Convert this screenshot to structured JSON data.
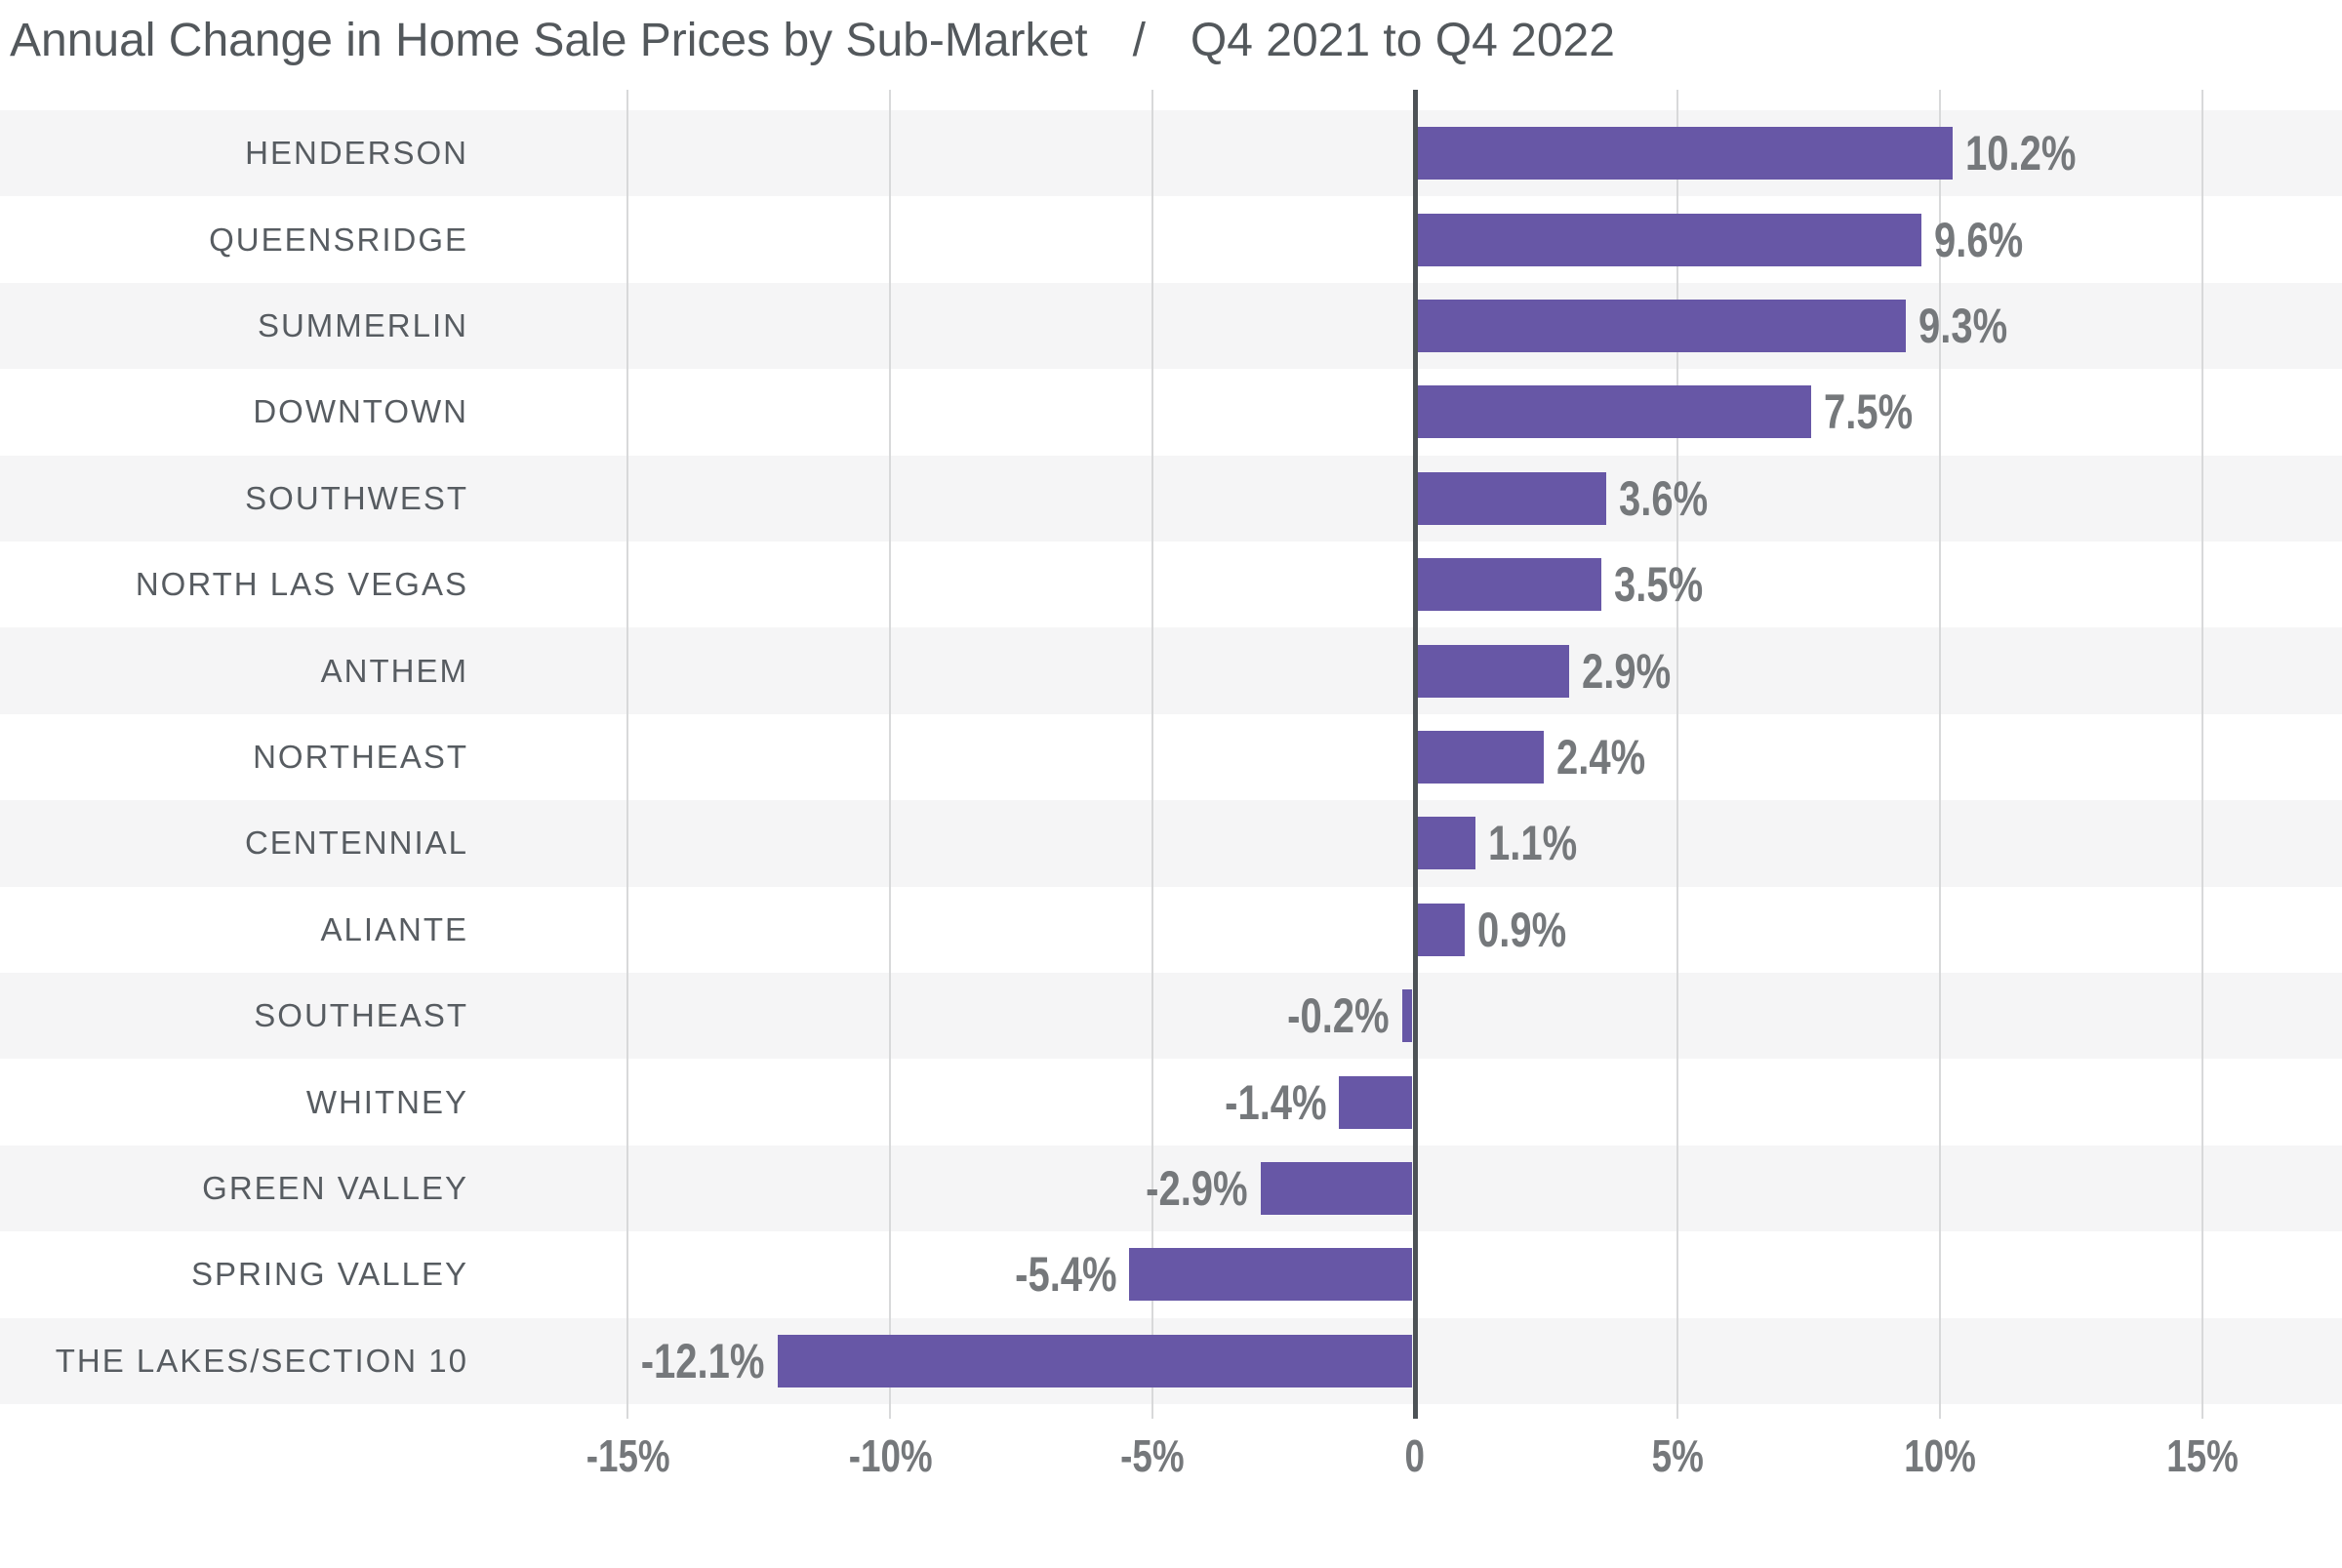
{
  "title": {
    "main": "Annual Change in Home Sale Prices by Sub-Market",
    "separator": "/",
    "subtitle": "Q4 2021 to Q4 2022"
  },
  "chart_data": {
    "type": "bar",
    "orientation": "horizontal",
    "title": "Annual Change in Home Sale Prices by Sub-Market / Q4 2021 to Q4 2022",
    "unit": "%",
    "categories": [
      "HENDERSON",
      "QUEENSRIDGE",
      "SUMMERLIN",
      "DOWNTOWN",
      "SOUTHWEST",
      "NORTH LAS VEGAS",
      "ANTHEM",
      "NORTHEAST",
      "CENTENNIAL",
      "ALIANTE",
      "SOUTHEAST",
      "WHITNEY",
      "GREEN VALLEY",
      "SPRING VALLEY",
      "THE LAKES/SECTION 10"
    ],
    "values": [
      10.2,
      9.6,
      9.3,
      7.5,
      3.6,
      3.5,
      2.9,
      2.4,
      1.1,
      0.9,
      -0.2,
      -1.4,
      -2.9,
      -5.4,
      -12.1
    ],
    "value_labels": [
      "10.2%",
      "9.6%",
      "9.3%",
      "7.5%",
      "3.6%",
      "3.5%",
      "2.9%",
      "2.4%",
      "1.1%",
      "0.9%",
      "-0.2%",
      "-1.4%",
      "-2.9%",
      "-5.4%",
      "-12.1%"
    ],
    "x_ticks": [
      {
        "value": -15,
        "label": "-15%"
      },
      {
        "value": -10,
        "label": "-10%"
      },
      {
        "value": -5,
        "label": "-5%"
      },
      {
        "value": 0,
        "label": "0"
      },
      {
        "value": 5,
        "label": "5%"
      },
      {
        "value": 10,
        "label": "10%"
      },
      {
        "value": 15,
        "label": "15%"
      }
    ],
    "xlim": [
      -15,
      15
    ],
    "grid": "vertical",
    "row_stripes": true,
    "legend": "none",
    "colors": {
      "bar": "#6757a6",
      "stripe": "#f5f5f6",
      "gridline": "#d8d9da",
      "zero_line": "#4d5256",
      "title_text": "#53585c",
      "category_text": "#575c61",
      "value_text": "#75787b",
      "axis_text": "#75787b",
      "background": "#ffffff"
    }
  }
}
